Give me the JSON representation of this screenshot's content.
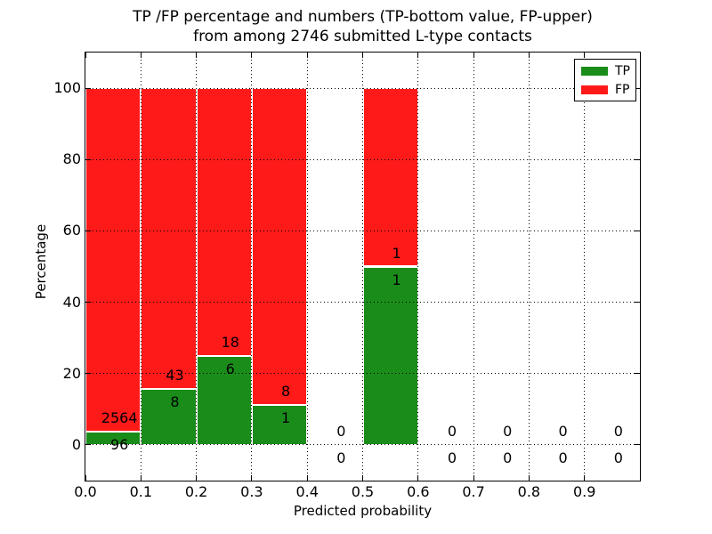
{
  "chart_data": {
    "type": "bar",
    "stacked": true,
    "title_line1": "TP /FP percentage and numbers (TP-bottom value, FP-upper)",
    "title_line2": "from among 2746 submitted L-type contacts",
    "xlabel": "Predicted probability",
    "ylabel": "Percentage",
    "xlim": [
      0.0,
      1.0
    ],
    "ylim": [
      -10,
      110
    ],
    "x_tick_values": [
      0.0,
      0.1,
      0.2,
      0.3,
      0.4,
      0.5,
      0.6,
      0.7,
      0.8,
      0.9
    ],
    "x_tick_labels": [
      "0.0",
      "0.1",
      "0.2",
      "0.3",
      "0.4",
      "0.5",
      "0.6",
      "0.7",
      "0.8",
      "0.9"
    ],
    "y_tick_values": [
      0,
      20,
      40,
      60,
      80,
      100
    ],
    "y_tick_labels": [
      "0",
      "20",
      "40",
      "60",
      "80",
      "100"
    ],
    "grid": "dotted",
    "total_contacts": 2746,
    "bin_width": 0.1,
    "legend": {
      "position": "upper right",
      "entries": [
        {
          "label": "TP",
          "color": "#1a8c1a"
        },
        {
          "label": "FP",
          "color": "#ff1a1a"
        }
      ]
    },
    "bins": [
      {
        "x0": 0.0,
        "x1": 0.1,
        "tp_count": 96,
        "fp_count": 2564,
        "tp_pct": 3.61,
        "fp_pct": 96.39
      },
      {
        "x0": 0.1,
        "x1": 0.2,
        "tp_count": 8,
        "fp_count": 43,
        "tp_pct": 15.69,
        "fp_pct": 84.31
      },
      {
        "x0": 0.2,
        "x1": 0.3,
        "tp_count": 6,
        "fp_count": 18,
        "tp_pct": 25.0,
        "fp_pct": 75.0
      },
      {
        "x0": 0.3,
        "x1": 0.4,
        "tp_count": 1,
        "fp_count": 8,
        "tp_pct": 11.11,
        "fp_pct": 88.89
      },
      {
        "x0": 0.4,
        "x1": 0.5,
        "tp_count": 0,
        "fp_count": 0,
        "tp_pct": 0,
        "fp_pct": 0
      },
      {
        "x0": 0.5,
        "x1": 0.6,
        "tp_count": 1,
        "fp_count": 1,
        "tp_pct": 50.0,
        "fp_pct": 50.0
      },
      {
        "x0": 0.6,
        "x1": 0.7,
        "tp_count": 0,
        "fp_count": 0,
        "tp_pct": 0,
        "fp_pct": 0
      },
      {
        "x0": 0.7,
        "x1": 0.8,
        "tp_count": 0,
        "fp_count": 0,
        "tp_pct": 0,
        "fp_pct": 0
      },
      {
        "x0": 0.8,
        "x1": 0.9,
        "tp_count": 0,
        "fp_count": 0,
        "tp_pct": 0,
        "fp_pct": 0
      },
      {
        "x0": 0.9,
        "x1": 1.0,
        "tp_count": 0,
        "fp_count": 0,
        "tp_pct": 0,
        "fp_pct": 0
      }
    ],
    "colors": {
      "tp": "#1a8c1a",
      "fp": "#ff1a1a",
      "bar_edge": "#ffffff",
      "grid": "#000000",
      "text": "#000000",
      "background": "#ffffff"
    }
  }
}
